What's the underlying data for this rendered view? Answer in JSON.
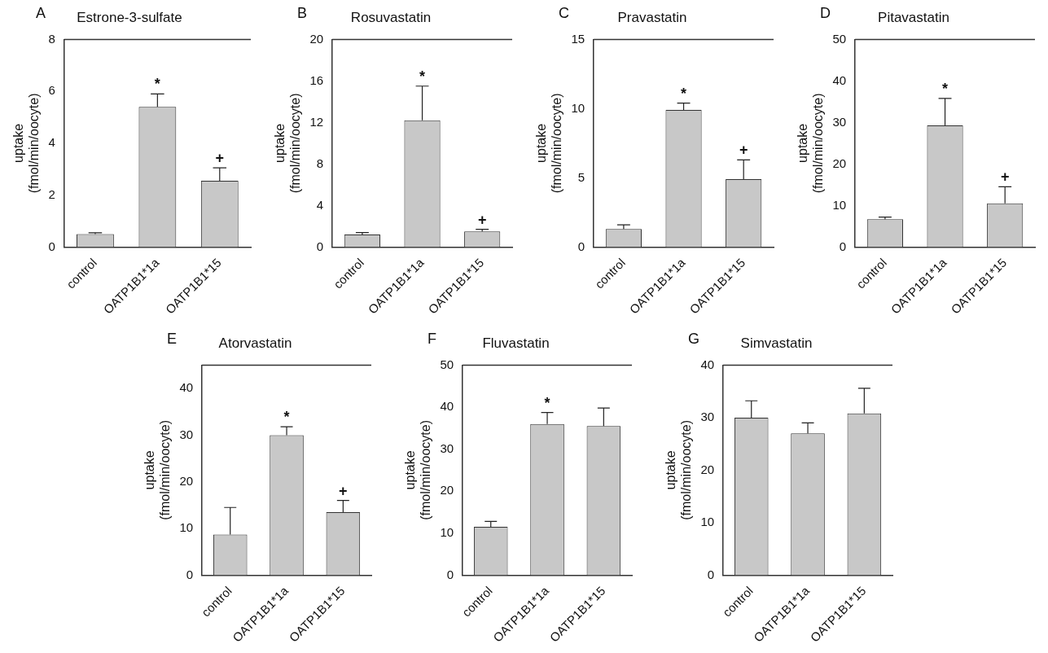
{
  "chart_data": [
    {
      "type": "bar",
      "panel": "A",
      "title": "Estrone-3-sulfate",
      "y_label": [
        "uptake",
        "(fmol/min/oocyte)"
      ],
      "categories": [
        "control",
        "OATP1B1*1a",
        "OATP1B1*15"
      ],
      "values": [
        0.5,
        5.4,
        2.55
      ],
      "errors": [
        0.05,
        0.5,
        0.5
      ],
      "significance": [
        null,
        "*",
        "+"
      ],
      "color": "#c8c8c8",
      "ylim": [
        0,
        8
      ],
      "yticks": [
        0,
        2,
        4,
        6,
        8
      ],
      "grid": false
    },
    {
      "type": "bar",
      "panel": "B",
      "title": "Rosuvastatin",
      "y_label": [
        "uptake",
        "(fmol/min/oocyte)"
      ],
      "categories": [
        "control",
        "OATP1B1*1a",
        "OATP1B1*15"
      ],
      "values": [
        1.2,
        12.2,
        1.5
      ],
      "errors": [
        0.2,
        3.3,
        0.2
      ],
      "significance": [
        null,
        "*",
        "+"
      ],
      "color": "#c8c8c8",
      "ylim": [
        0,
        20
      ],
      "yticks": [
        0,
        4,
        8,
        12,
        16,
        20
      ],
      "grid": false
    },
    {
      "type": "bar",
      "panel": "C",
      "title": "Pravastatin",
      "y_label": [
        "uptake",
        "(fmol/min/oocyte)"
      ],
      "categories": [
        "control",
        "OATP1B1*1a",
        "OATP1B1*15"
      ],
      "values": [
        1.3,
        9.9,
        4.9
      ],
      "errors": [
        0.3,
        0.5,
        1.4
      ],
      "significance": [
        null,
        "*",
        "+"
      ],
      "color": "#c8c8c8",
      "ylim": [
        0,
        15
      ],
      "yticks": [
        0,
        5,
        10,
        15
      ],
      "grid": false
    },
    {
      "type": "bar",
      "panel": "D",
      "title": "Pitavastatin",
      "y_label": [
        "uptake",
        "(fmol/min/oocyte)"
      ],
      "categories": [
        "control",
        "OATP1B1*1a",
        "OATP1B1*15"
      ],
      "values": [
        6.7,
        29.3,
        10.5
      ],
      "errors": [
        0.5,
        6.5,
        4
      ],
      "significance": [
        null,
        "*",
        "+"
      ],
      "color": "#c8c8c8",
      "ylim": [
        0,
        50
      ],
      "yticks": [
        0,
        10,
        20,
        30,
        40,
        50
      ],
      "grid": false
    },
    {
      "type": "bar",
      "panel": "E",
      "title": "Atorvastatin",
      "y_label": [
        "uptake",
        "(fmol/min/oocyte)"
      ],
      "categories": [
        "control",
        "OATP1B1*1a",
        "OATP1B1*15"
      ],
      "values": [
        8.7,
        30,
        13.5
      ],
      "errors": [
        5.8,
        1.8,
        2.5
      ],
      "significance": [
        null,
        "*",
        "+"
      ],
      "color": "#c8c8c8",
      "ylim": [
        0,
        45
      ],
      "yticks": [
        0,
        10,
        20,
        30,
        40
      ],
      "grid": false
    },
    {
      "type": "bar",
      "panel": "F",
      "title": "Fluvastatin",
      "y_label": [
        "uptake",
        "(fmol/min/oocyte)"
      ],
      "categories": [
        "control",
        "OATP1B1*1a",
        "OATP1B1*15"
      ],
      "values": [
        11.5,
        36,
        35.5
      ],
      "errors": [
        1.3,
        2.7,
        4.3
      ],
      "significance": [
        null,
        "*",
        null
      ],
      "color": "#c8c8c8",
      "ylim": [
        0,
        50
      ],
      "yticks": [
        0,
        10,
        20,
        30,
        40,
        50
      ],
      "grid": false
    },
    {
      "type": "bar",
      "panel": "G",
      "title": "Simvastatin",
      "y_label": [
        "uptake",
        "(fmol/min/oocyte)"
      ],
      "categories": [
        "control",
        "OATP1B1*1a",
        "OATP1B1*15"
      ],
      "values": [
        30,
        27,
        30.8
      ],
      "errors": [
        3.2,
        2,
        4.8
      ],
      "significance": [
        null,
        null,
        null
      ],
      "color": "#c8c8c8",
      "ylim": [
        0,
        40
      ],
      "yticks": [
        0,
        10,
        20,
        30,
        40
      ],
      "grid": false
    }
  ]
}
